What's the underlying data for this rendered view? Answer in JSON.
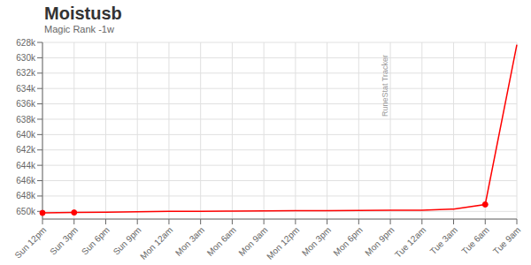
{
  "chart_data": {
    "type": "line",
    "title": "Moistusb",
    "subtitle": "Magic Rank -1w",
    "annotations": [
      "RuneStat Tracker"
    ],
    "categories": [
      "Sun 12pm",
      "Sun 3pm",
      "Sun 6pm",
      "Sun 9pm",
      "Mon 12am",
      "Mon 3am",
      "Mon 6am",
      "Mon 9am",
      "Mon 12pm",
      "Mon 3pm",
      "Mon 6pm",
      "Mon 9pm",
      "Tue 12am",
      "Tue 3am",
      "Tue 6am",
      "Tue 9am"
    ],
    "series": [
      {
        "type": "line",
        "color": "#ff0000",
        "values": [
          650200,
          650150,
          650100,
          650050,
          650000,
          649980,
          649960,
          649940,
          649920,
          649900,
          649880,
          649860,
          649840,
          649700,
          649100,
          628300
        ]
      },
      {
        "type": "scatter",
        "marker": "circle",
        "color": "#ff0000",
        "values": [
          650200,
          650150,
          null,
          null,
          null,
          null,
          null,
          null,
          null,
          null,
          null,
          null,
          null,
          null,
          649100,
          null
        ]
      }
    ],
    "ylim": [
      651000,
      628000
    ],
    "yticks": [
      {
        "value": 628000,
        "label": "628k"
      },
      {
        "value": 630000,
        "label": "630k"
      },
      {
        "value": 632000,
        "label": "632k"
      },
      {
        "value": 634000,
        "label": "634k"
      },
      {
        "value": 636000,
        "label": "636k"
      },
      {
        "value": 638000,
        "label": "638k"
      },
      {
        "value": 640000,
        "label": "640k"
      },
      {
        "value": 642000,
        "label": "642k"
      },
      {
        "value": 644000,
        "label": "644k"
      },
      {
        "value": 646000,
        "label": "646k"
      },
      {
        "value": 648000,
        "label": "648k"
      },
      {
        "value": 650000,
        "label": "650k"
      }
    ],
    "grid": true
  }
}
